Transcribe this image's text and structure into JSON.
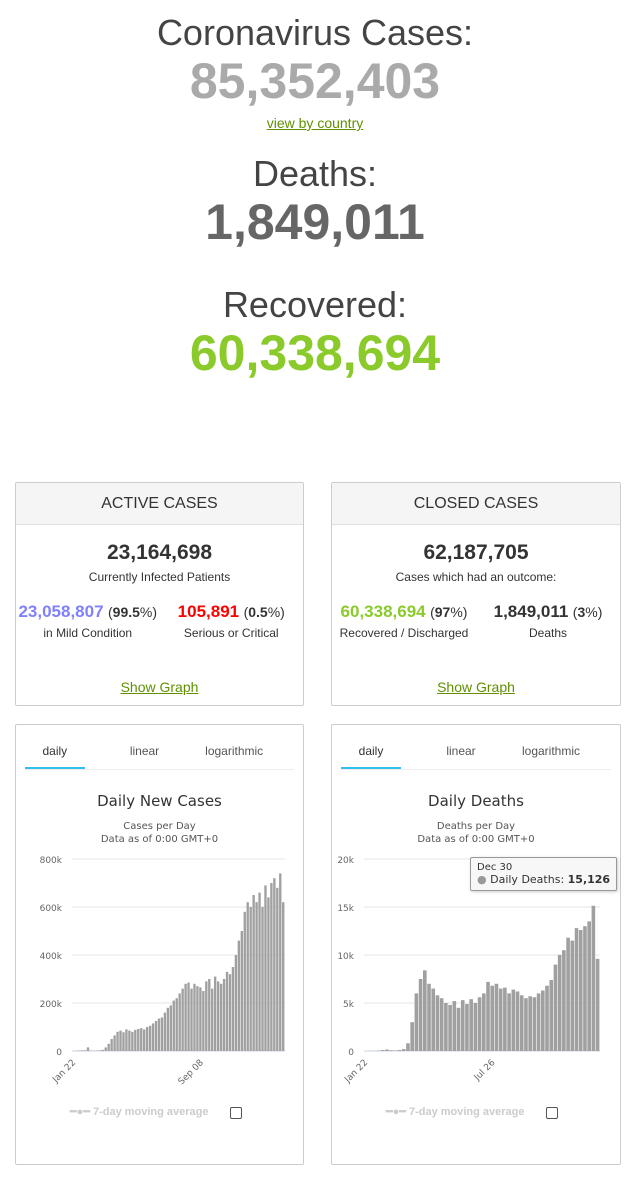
{
  "header": {
    "cases_label": "Coronavirus Cases:",
    "cases_value": "85,352,403",
    "view_link": "view by country",
    "deaths_label": "Deaths:",
    "deaths_value": "1,849,011",
    "recovered_label": "Recovered:",
    "recovered_value": "60,338,694"
  },
  "active": {
    "title": "ACTIVE CASES",
    "total": "23,164,698",
    "total_label": "Currently Infected Patients",
    "mild_value": "23,058,807",
    "mild_pct": "99.5",
    "mild_label": "in Mild Condition",
    "serious_value": "105,891",
    "serious_pct": "0.5",
    "serious_label": "Serious or Critical",
    "show_graph": "Show Graph"
  },
  "closed": {
    "title": "CLOSED CASES",
    "total": "62,187,705",
    "total_label": "Cases which had an outcome:",
    "rec_value": "60,338,694",
    "rec_pct": "97",
    "rec_label": "Recovered / Discharged",
    "death_value": "1,849,011",
    "death_pct": "3",
    "death_label": "Deaths",
    "show_graph": "Show Graph"
  },
  "colors": {
    "recovered": "#8ACA2B",
    "mild": "#8080FF",
    "serious": "#FF0000",
    "bars": "#a0a0a0",
    "tab_active": "#2fc0f0"
  },
  "tabs": [
    "daily",
    "linear",
    "logarithmic"
  ],
  "legend": {
    "label": "7-day moving average",
    "checked": false
  },
  "tooltip": {
    "date": "Dec 30",
    "series": "Daily Deaths",
    "value": "15,126"
  },
  "chart_data": [
    {
      "type": "bar",
      "title": "Daily New Cases",
      "subtitle": "Cases per Day",
      "subtitle2": "Data as of 0:00 GMT+0",
      "ylim": [
        0,
        800000
      ],
      "yticks": [
        "0",
        "200k",
        "400k",
        "600k",
        "800k"
      ],
      "xticks": [
        "Jan 22",
        "Sep 08"
      ],
      "grid": true,
      "values": [
        0,
        1000,
        2000,
        3000,
        3000,
        15000,
        2000,
        1000,
        2000,
        3000,
        5000,
        15000,
        30000,
        50000,
        65000,
        80000,
        85000,
        78000,
        90000,
        85000,
        80000,
        88000,
        92000,
        95000,
        90000,
        100000,
        105000,
        115000,
        125000,
        135000,
        140000,
        160000,
        180000,
        190000,
        210000,
        220000,
        240000,
        260000,
        280000,
        285000,
        260000,
        280000,
        270000,
        265000,
        250000,
        290000,
        300000,
        260000,
        310000,
        290000,
        280000,
        300000,
        330000,
        320000,
        350000,
        400000,
        460000,
        500000,
        580000,
        620000,
        600000,
        650000,
        620000,
        660000,
        600000,
        690000,
        640000,
        700000,
        720000,
        680000,
        740000,
        620000
      ]
    },
    {
      "type": "bar",
      "title": "Daily Deaths",
      "subtitle": "Deaths per Day",
      "subtitle2": "Data as of 0:00 GMT+0",
      "ylim": [
        0,
        20000
      ],
      "yticks": [
        "0",
        "5k",
        "10k",
        "15k",
        "20k"
      ],
      "xticks": [
        "Jan 22",
        "Jul 26"
      ],
      "grid": true,
      "values": [
        0,
        10,
        20,
        50,
        100,
        150,
        80,
        60,
        100,
        200,
        800,
        3000,
        6000,
        7500,
        8400,
        7000,
        6500,
        5800,
        5500,
        5000,
        4800,
        5200,
        4500,
        5300,
        4900,
        5400,
        5000,
        5600,
        6000,
        7200,
        6800,
        7000,
        6500,
        6600,
        6000,
        6400,
        6200,
        5800,
        5500,
        5700,
        5600,
        6000,
        6300,
        6800,
        7400,
        9000,
        10000,
        10500,
        11800,
        11500,
        12800,
        12600,
        13000,
        13500,
        15126,
        9600
      ]
    }
  ]
}
